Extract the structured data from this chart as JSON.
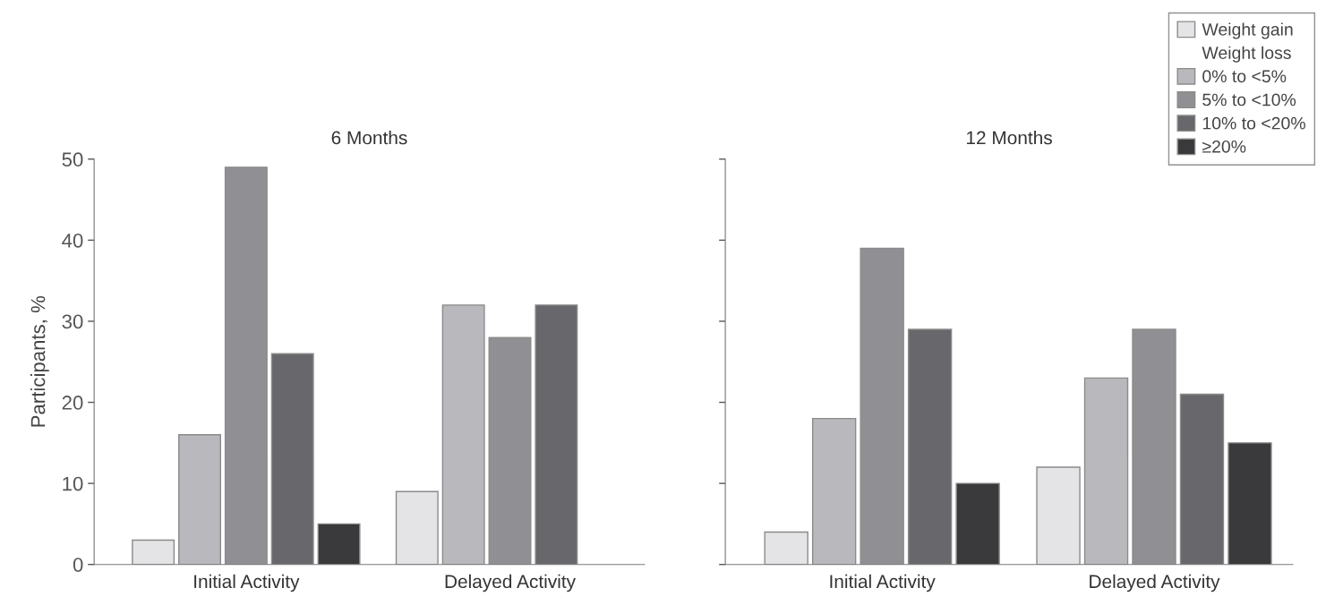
{
  "chart_data": [
    {
      "type": "bar",
      "title": "6 Months",
      "ylabel": "Participants, %",
      "categories": [
        "Initial Activity",
        "Delayed Activity"
      ],
      "ylim": [
        0,
        50
      ],
      "yticks": [
        0,
        10,
        20,
        30,
        40,
        50
      ],
      "grid": false,
      "series": [
        {
          "color": "#e4e4e6",
          "values": [
            3,
            9
          ]
        },
        {
          "color": "#b9b9bd",
          "values": [
            16,
            32
          ]
        },
        {
          "color": "#909094",
          "values": [
            49,
            28
          ]
        },
        {
          "color": "#68686c",
          "values": [
            26,
            32
          ]
        },
        {
          "color": "#3a3a3c",
          "values": [
            5,
            null
          ]
        }
      ]
    },
    {
      "type": "bar",
      "title": "12 Months",
      "categories": [
        "Initial Activity",
        "Delayed Activity"
      ],
      "ylim": [
        0,
        50
      ],
      "yticks": [
        {
          "value": 0,
          "label": null
        },
        {
          "value": 10,
          "label": null
        },
        {
          "value": 20,
          "label": null
        },
        {
          "value": 30,
          "label": null
        },
        {
          "value": 40,
          "label": null
        },
        {
          "value": 50,
          "label": null
        }
      ],
      "tick_labels": "x",
      "grid": false,
      "legend": "top right",
      "annotations": [
        "Weight loss"
      ],
      "series": [
        {
          "name": "Weight gain",
          "color": "#e4e4e6",
          "values": [
            4,
            12
          ]
        },
        {
          "name": "0% to <5%",
          "color": "#b9b9bd",
          "values": [
            18,
            23
          ]
        },
        {
          "name": "5% to <10%",
          "color": "#909094",
          "values": [
            39,
            29
          ]
        },
        {
          "name": "10% to <20%",
          "color": "#68686c",
          "values": [
            29,
            21
          ]
        },
        {
          "name": "≥20%",
          "color": "#3a3a3c",
          "values": [
            10,
            15
          ]
        }
      ]
    }
  ]
}
